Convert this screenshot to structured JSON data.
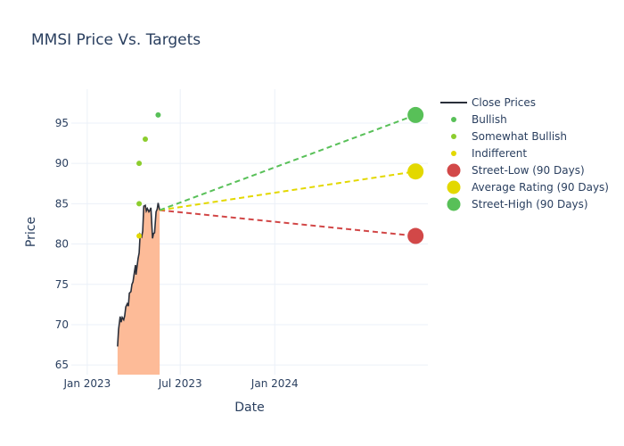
{
  "chart_data": {
    "type": "line",
    "title": "MMSI Price Vs. Targets",
    "xlabel": "Date",
    "ylabel": "Price",
    "x_range": [
      "2022-12-01",
      "2024-10-25"
    ],
    "ylim": [
      63.8,
      99.2
    ],
    "x_ticks": [
      {
        "date": "2023-01-01",
        "label": "Jan 2023"
      },
      {
        "date": "2023-07-01",
        "label": "Jul 2023"
      },
      {
        "date": "2024-01-01",
        "label": "Jan 2024"
      }
    ],
    "y_ticks": [
      65,
      70,
      75,
      80,
      85,
      90,
      95
    ],
    "grid": true,
    "legend_position": "top-right",
    "close_prices": {
      "name": "Close Prices",
      "color": "#2a2f3a",
      "fill_color": "#fdbb98",
      "points": [
        [
          "2023-03-01",
          67.3
        ],
        [
          "2023-03-03",
          69.4
        ],
        [
          "2023-03-06",
          71.0
        ],
        [
          "2023-03-08",
          70.3
        ],
        [
          "2023-03-10",
          70.9
        ],
        [
          "2023-03-13",
          70.6
        ],
        [
          "2023-03-15",
          71.1
        ],
        [
          "2023-03-17",
          72.2
        ],
        [
          "2023-03-20",
          72.6
        ],
        [
          "2023-03-22",
          72.3
        ],
        [
          "2023-03-24",
          73.9
        ],
        [
          "2023-03-27",
          74.1
        ],
        [
          "2023-03-29",
          75.0
        ],
        [
          "2023-03-31",
          75.3
        ],
        [
          "2023-04-03",
          76.6
        ],
        [
          "2023-04-05",
          77.4
        ],
        [
          "2023-04-06",
          76.2
        ],
        [
          "2023-04-10",
          78.2
        ],
        [
          "2023-04-12",
          78.9
        ],
        [
          "2023-04-14",
          81.2
        ],
        [
          "2023-04-17",
          80.9
        ],
        [
          "2023-04-19",
          81.6
        ],
        [
          "2023-04-21",
          84.7
        ],
        [
          "2023-04-24",
          84.8
        ],
        [
          "2023-04-26",
          84.1
        ],
        [
          "2023-04-28",
          84.4
        ],
        [
          "2023-05-01",
          84.0
        ],
        [
          "2023-05-03",
          84.2
        ],
        [
          "2023-05-05",
          84.5
        ],
        [
          "2023-05-08",
          80.7
        ],
        [
          "2023-05-10",
          81.3
        ],
        [
          "2023-05-12",
          81.4
        ],
        [
          "2023-05-15",
          84.0
        ],
        [
          "2023-05-17",
          84.3
        ],
        [
          "2023-05-19",
          85.1
        ],
        [
          "2023-05-22",
          84.2
        ]
      ]
    },
    "ratings": [
      {
        "name": "Bullish",
        "color": "#58c058",
        "points": [
          [
            "2023-05-19",
            96
          ]
        ]
      },
      {
        "name": "Somewhat Bullish",
        "color": "#8ccd2e",
        "points": [
          [
            "2023-04-12",
            90
          ],
          [
            "2023-04-12",
            85
          ],
          [
            "2023-04-24",
            93
          ]
        ]
      },
      {
        "name": "Indifferent",
        "color": "#e3d800",
        "points": [
          [
            "2023-04-12",
            81
          ]
        ]
      }
    ],
    "targets": {
      "start_date": "2023-05-22",
      "start_price": 84.2,
      "target_date": "2024-10-01",
      "series": [
        {
          "name": "Street-Low (90 Days)",
          "value": 81,
          "color": "#d24848"
        },
        {
          "name": "Average Rating (90 Days)",
          "value": 89,
          "color": "#e3d800"
        },
        {
          "name": "Street-High (90 Days)",
          "value": 96,
          "color": "#58c058"
        }
      ]
    }
  }
}
